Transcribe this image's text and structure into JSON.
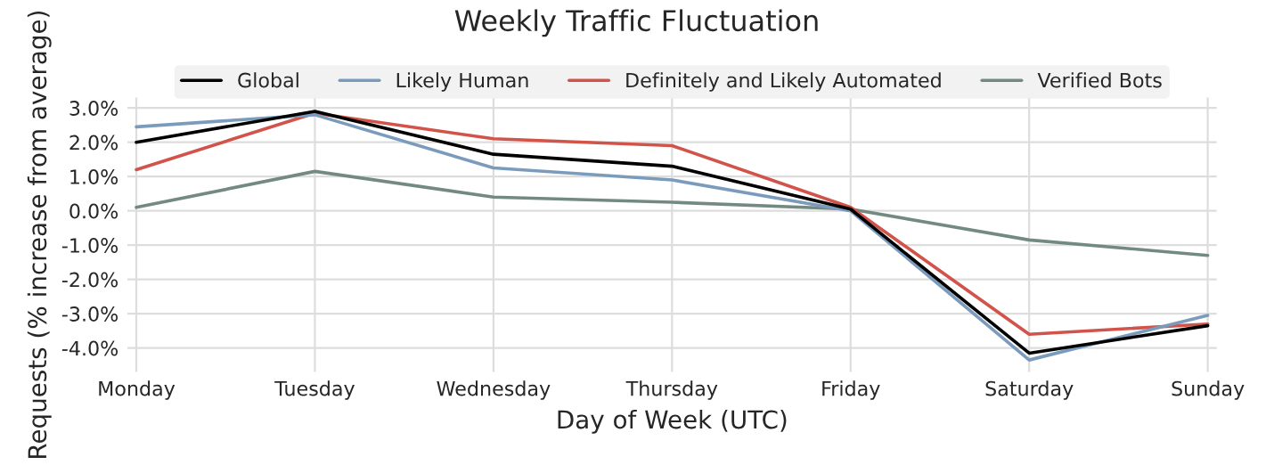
{
  "chart_data": {
    "type": "line",
    "title": "Weekly Traffic Fluctuation",
    "xlabel": "Day of Week (UTC)",
    "ylabel": "Requests (% increase from average)",
    "categories": [
      "Monday",
      "Tuesday",
      "Wednesday",
      "Thursday",
      "Friday",
      "Saturday",
      "Sunday"
    ],
    "series": [
      {
        "name": "Global",
        "color": "#000000",
        "values": [
          2.0,
          2.9,
          1.65,
          1.3,
          0.05,
          -4.15,
          -3.35
        ]
      },
      {
        "name": "Likely Human",
        "color": "#7b9bbd",
        "values": [
          2.45,
          2.8,
          1.25,
          0.9,
          0.0,
          -4.35,
          -3.05
        ]
      },
      {
        "name": "Definitely and Likely Automated",
        "color": "#d1534a",
        "values": [
          1.2,
          2.85,
          2.1,
          1.9,
          0.1,
          -3.6,
          -3.3
        ]
      },
      {
        "name": "Verified Bots",
        "color": "#738a80",
        "values": [
          0.1,
          1.15,
          0.4,
          0.25,
          0.05,
          -0.85,
          -1.3
        ]
      }
    ],
    "ylim": [
      -4.7,
      3.3
    ],
    "yticks": [
      {
        "value": -4,
        "label": "-4.0%"
      },
      {
        "value": -3,
        "label": "-3.0%"
      },
      {
        "value": -2,
        "label": "-2.0%"
      },
      {
        "value": -1,
        "label": "-1.0%"
      },
      {
        "value": 0,
        "label": "0.0%"
      },
      {
        "value": 1,
        "label": "1.0%"
      },
      {
        "value": 2,
        "label": "2.0%"
      },
      {
        "value": 3,
        "label": "3.0%"
      }
    ],
    "grid": true,
    "legend": "top",
    "marker": "none",
    "line_style": "solid"
  }
}
